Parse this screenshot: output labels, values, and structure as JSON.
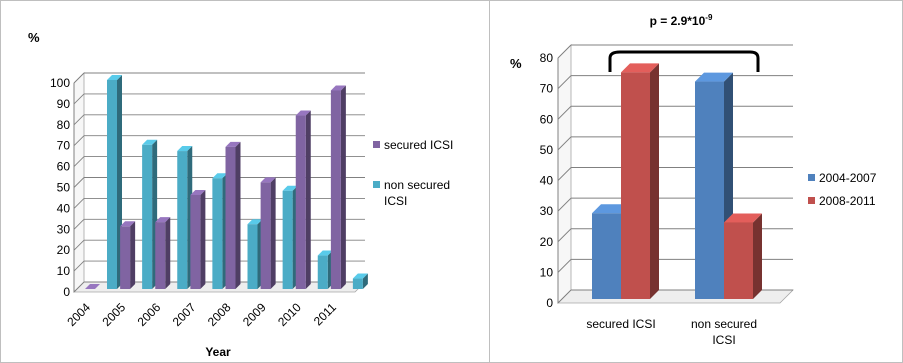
{
  "chart_data": [
    {
      "type": "bar",
      "title": "",
      "ylabel": "%",
      "xlabel": "Year",
      "ylim": [
        0,
        100
      ],
      "yticks": [
        "0",
        "10",
        "20",
        "30",
        "40",
        "50",
        "60",
        "70",
        "80",
        "90",
        "100"
      ],
      "categories": [
        "2004",
        "2005",
        "2006",
        "2007",
        "2008",
        "2009",
        "2010",
        "2011"
      ],
      "legend_position": "right",
      "series": [
        {
          "name": "secured ICSI",
          "color": "#8064a2",
          "values": [
            0,
            30,
            32,
            45,
            68,
            51,
            83,
            95
          ]
        },
        {
          "name_lines": [
            "non secured",
            "ICSI"
          ],
          "color": "#4bacc6",
          "values": [
            100,
            69,
            66,
            53,
            31,
            47,
            16,
            5
          ]
        }
      ]
    },
    {
      "type": "bar",
      "title": "",
      "annotation_prefix": "p = 2.9*10",
      "annotation_exp": "-9",
      "ylabel": "%",
      "ylim": [
        0,
        80
      ],
      "yticks": [
        "0",
        "10",
        "20",
        "30",
        "40",
        "50",
        "60",
        "70",
        "80"
      ],
      "categories": [
        "secured ICSI",
        "non secured ICSI"
      ],
      "category_lines": [
        [
          "secured ICSI"
        ],
        [
          "non secured",
          "ICSI"
        ]
      ],
      "legend_position": "right",
      "series": [
        {
          "name": "2004-2007",
          "color": "#4f81bd",
          "values": [
            28,
            71
          ]
        },
        {
          "name": "2008-2011",
          "color": "#c0504d",
          "values": [
            74,
            25
          ]
        }
      ]
    }
  ]
}
